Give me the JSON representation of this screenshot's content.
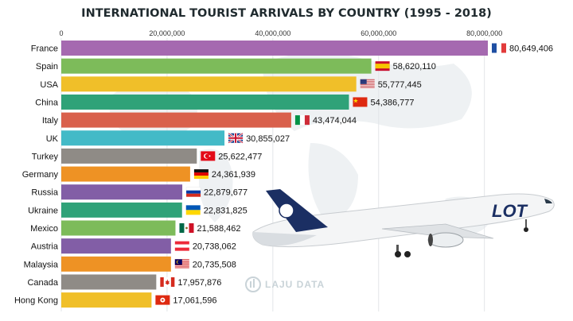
{
  "chart_data": {
    "type": "bar",
    "orientation": "horizontal",
    "title": "INTERNATIONAL TOURIST ARRIVALS BY COUNTRY (1995 - 2018)",
    "xlabel": "",
    "ylabel": "",
    "xlim": [
      0,
      80649406
    ],
    "ticks": [
      0,
      20000000,
      40000000,
      60000000,
      80000000
    ],
    "tick_labels": [
      "0",
      "20,000,000",
      "40,000,000",
      "60,000,000",
      "80,000,000"
    ],
    "grid": true,
    "categories": [
      "France",
      "Spain",
      "USA",
      "China",
      "Italy",
      "UK",
      "Turkey",
      "Germany",
      "Russia",
      "Ukraine",
      "Mexico",
      "Austria",
      "Malaysia",
      "Canada",
      "Hong Kong"
    ],
    "values": [
      80649406,
      58620110,
      55777445,
      54386777,
      43474044,
      30855027,
      25622477,
      24361939,
      22879677,
      22831825,
      21588462,
      20738062,
      20735508,
      17957876,
      17061596
    ],
    "value_labels": [
      "80,649,406",
      "58,620,110",
      "55,777,445",
      "54,386,777",
      "43,474,044",
      "30,855,027",
      "25,622,477",
      "24,361,939",
      "22,879,677",
      "22,831,825",
      "21,588,462",
      "20,738,062",
      "20,735,508",
      "17,957,876",
      "17,061,596"
    ],
    "colors": [
      "#a569b0",
      "#7dbb5a",
      "#f0bf29",
      "#2fa278",
      "#d9604c",
      "#43bac7",
      "#8f8b86",
      "#ee9224",
      "#825ea6",
      "#2fa278",
      "#7dbb5a",
      "#825ea6",
      "#ee9224",
      "#8f8b86",
      "#f0bf29"
    ],
    "flags": [
      "france-flag-icon",
      "spain-flag-icon",
      "usa-flag-icon",
      "china-flag-icon",
      "italy-flag-icon",
      "uk-flag-icon",
      "turkey-flag-icon",
      "germany-flag-icon",
      "russia-flag-icon",
      "ukraine-flag-icon",
      "mexico-flag-icon",
      "austria-flag-icon",
      "malaysia-flag-icon",
      "canada-flag-icon",
      "hong-kong-flag-icon"
    ]
  },
  "decor": {
    "airplane_logo": "LOT",
    "airplane_name": "airplane-photo",
    "watermark": "LAJU DATA"
  }
}
